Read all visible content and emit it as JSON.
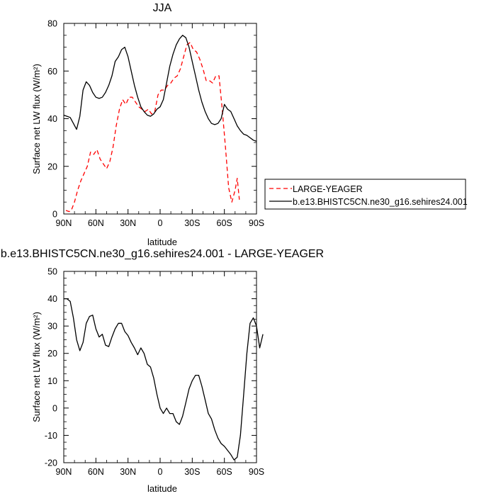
{
  "chart_data": [
    {
      "type": "line",
      "title": "JJA",
      "xlabel": "latitude",
      "ylabel": "Surface net LW flux (W/m²)",
      "x_tick_values": [
        90,
        60,
        30,
        0,
        -30,
        -60,
        -90
      ],
      "x_tick_labels": [
        "90N",
        "60N",
        "30N",
        "0",
        "30S",
        "60S",
        "90S"
      ],
      "xlim": [
        90,
        -90
      ],
      "ylim": [
        0,
        80
      ],
      "y_ticks": [
        0,
        20,
        40,
        60,
        80
      ],
      "grid": false,
      "legend_position": "right",
      "series": [
        {
          "name": "LARGE-YEAGER",
          "color": "#ff0000",
          "dash": "dashed",
          "points": [
            [
              88,
              1.5
            ],
            [
              85,
              1
            ],
            [
              83,
              1.5
            ],
            [
              80,
              5
            ],
            [
              77,
              10
            ],
            [
              74,
              14
            ],
            [
              71,
              17
            ],
            [
              68,
              20
            ],
            [
              65,
              26
            ],
            [
              62,
              25
            ],
            [
              59,
              27
            ],
            [
              56,
              23
            ],
            [
              53,
              21
            ],
            [
              50,
              19
            ],
            [
              47,
              22
            ],
            [
              44,
              28
            ],
            [
              41,
              37
            ],
            [
              38,
              44
            ],
            [
              35,
              48
            ],
            [
              32,
              46
            ],
            [
              29,
              49
            ],
            [
              26,
              49
            ],
            [
              23,
              47
            ],
            [
              20,
              45
            ],
            [
              17,
              44
            ],
            [
              14,
              43
            ],
            [
              11,
              44
            ],
            [
              8,
              42
            ],
            [
              5,
              43
            ],
            [
              2,
              50
            ],
            [
              -1,
              52
            ],
            [
              -4,
              52
            ],
            [
              -7,
              54
            ],
            [
              -10,
              55
            ],
            [
              -13,
              57
            ],
            [
              -16,
              58
            ],
            [
              -19,
              61
            ],
            [
              -22,
              66
            ],
            [
              -25,
              71
            ],
            [
              -28,
              72
            ],
            [
              -31,
              69
            ],
            [
              -34,
              68
            ],
            [
              -37,
              65
            ],
            [
              -40,
              61
            ],
            [
              -43,
              56
            ],
            [
              -46,
              56
            ],
            [
              -49,
              55
            ],
            [
              -52,
              58
            ],
            [
              -55,
              58
            ],
            [
              -58,
              44
            ],
            [
              -61,
              28
            ],
            [
              -64,
              11
            ],
            [
              -67,
              5
            ],
            [
              -70,
              10
            ],
            [
              -72,
              15
            ],
            [
              -74,
              6
            ]
          ]
        },
        {
          "name": "b.e13.BHISTC5CN.ne30_g16.sehires24.001",
          "color": "#000000",
          "dash": "solid",
          "points": [
            [
              90,
              41.5
            ],
            [
              87,
              41
            ],
            [
              84,
              40.5
            ],
            [
              81,
              38
            ],
            [
              78,
              35.5
            ],
            [
              75,
              41
            ],
            [
              72,
              52
            ],
            [
              69,
              55.5
            ],
            [
              66,
              54
            ],
            [
              63,
              51
            ],
            [
              60,
              49
            ],
            [
              57,
              48.5
            ],
            [
              54,
              49
            ],
            [
              51,
              51
            ],
            [
              48,
              54
            ],
            [
              45,
              58
            ],
            [
              42,
              64
            ],
            [
              39,
              66
            ],
            [
              36,
              69
            ],
            [
              33,
              70
            ],
            [
              30,
              66
            ],
            [
              27,
              60
            ],
            [
              24,
              54
            ],
            [
              21,
              49
            ],
            [
              18,
              45
            ],
            [
              15,
              43
            ],
            [
              12,
              41.5
            ],
            [
              9,
              41
            ],
            [
              6,
              42
            ],
            [
              3,
              44
            ],
            [
              0,
              45
            ],
            [
              -3,
              48
            ],
            [
              -6,
              55
            ],
            [
              -9,
              62
            ],
            [
              -12,
              67
            ],
            [
              -15,
              71
            ],
            [
              -18,
              73.5
            ],
            [
              -21,
              75
            ],
            [
              -24,
              74
            ],
            [
              -27,
              70
            ],
            [
              -30,
              64
            ],
            [
              -33,
              58
            ],
            [
              -36,
              52
            ],
            [
              -39,
              47
            ],
            [
              -42,
              43
            ],
            [
              -45,
              40
            ],
            [
              -48,
              38
            ],
            [
              -51,
              37.5
            ],
            [
              -54,
              38
            ],
            [
              -57,
              40
            ],
            [
              -60,
              46
            ],
            [
              -63,
              44
            ],
            [
              -66,
              43
            ],
            [
              -69,
              40
            ],
            [
              -72,
              37
            ],
            [
              -75,
              35
            ],
            [
              -78,
              33.5
            ],
            [
              -81,
              33
            ],
            [
              -84,
              32
            ],
            [
              -87,
              31
            ],
            [
              -90,
              30.5
            ]
          ]
        }
      ]
    },
    {
      "type": "line",
      "title": "b.e13.BHISTC5CN.ne30_g16.sehires24.001 - LARGE-YEAGER",
      "xlabel": "latitude",
      "ylabel": "Surface net LW flux (W/m²)",
      "x_tick_values": [
        90,
        60,
        30,
        0,
        -30,
        -60,
        -90
      ],
      "x_tick_labels": [
        "90N",
        "60N",
        "30N",
        "0",
        "30S",
        "60S",
        "90S"
      ],
      "xlim": [
        90,
        -90
      ],
      "ylim": [
        -20,
        50
      ],
      "y_ticks": [
        -20,
        -10,
        0,
        10,
        20,
        30,
        40,
        50
      ],
      "grid": false,
      "series": [
        {
          "color": "#000000",
          "dash": "solid",
          "points": [
            [
              90,
              40
            ],
            [
              87,
              40
            ],
            [
              84,
              39
            ],
            [
              81,
              33
            ],
            [
              78,
              25
            ],
            [
              75,
              21
            ],
            [
              72,
              24
            ],
            [
              69,
              31
            ],
            [
              66,
              33.5
            ],
            [
              63,
              34
            ],
            [
              60,
              29
            ],
            [
              57,
              26
            ],
            [
              54,
              27
            ],
            [
              51,
              23
            ],
            [
              48,
              22.5
            ],
            [
              45,
              26
            ],
            [
              42,
              29
            ],
            [
              39,
              31
            ],
            [
              36,
              31
            ],
            [
              33,
              28
            ],
            [
              30,
              26.5
            ],
            [
              27,
              24
            ],
            [
              24,
              22
            ],
            [
              21,
              19.5
            ],
            [
              18,
              22
            ],
            [
              15,
              20
            ],
            [
              12,
              16
            ],
            [
              9,
              15
            ],
            [
              6,
              11
            ],
            [
              3,
              5
            ],
            [
              0,
              0
            ],
            [
              -3,
              -2
            ],
            [
              -6,
              0
            ],
            [
              -9,
              -2
            ],
            [
              -12,
              -2
            ],
            [
              -15,
              -5
            ],
            [
              -18,
              -6
            ],
            [
              -21,
              -3
            ],
            [
              -24,
              2
            ],
            [
              -27,
              7
            ],
            [
              -30,
              10
            ],
            [
              -33,
              12
            ],
            [
              -36,
              12
            ],
            [
              -39,
              8
            ],
            [
              -42,
              3
            ],
            [
              -45,
              -2
            ],
            [
              -48,
              -4
            ],
            [
              -51,
              -8
            ],
            [
              -54,
              -11
            ],
            [
              -57,
              -13
            ],
            [
              -60,
              -14
            ],
            [
              -63,
              -15.5
            ],
            [
              -66,
              -17
            ],
            [
              -69,
              -19
            ],
            [
              -72,
              -18
            ],
            [
              -75,
              -10
            ],
            [
              -78,
              5
            ],
            [
              -81,
              20
            ],
            [
              -84,
              31
            ],
            [
              -87,
              33
            ],
            [
              -90,
              30
            ],
            [
              -93,
              22
            ],
            [
              -96,
              27
            ]
          ]
        }
      ]
    }
  ]
}
